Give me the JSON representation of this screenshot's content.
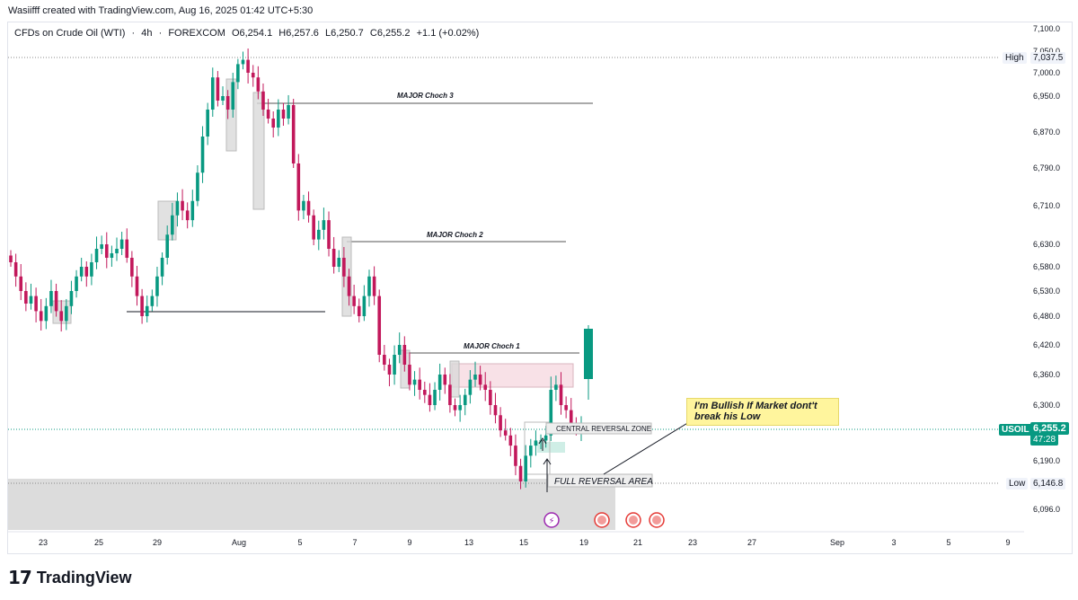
{
  "credit": "Wasiifff created with TradingView.com, Aug 16, 2025 01:42 UTC+5:30",
  "symbol": {
    "name": "CFDs on Crude Oil (WTI)",
    "sep1": "·",
    "interval": "4h",
    "sep2": "·",
    "exchange": "FOREXCOM",
    "open": "O6,254.1",
    "high": "H6,257.6",
    "low": "L6,250.7",
    "close": "C6,255.2",
    "change": "+1.1 (+0.02%)"
  },
  "price_tags": {
    "high_label": "High",
    "high_value": "7,037.5",
    "current_symbol": "USOIL",
    "current_value": "6,255.2",
    "countdown": "47:28",
    "low_label": "Low",
    "low_value": "6,146.8"
  },
  "annotations": {
    "choch3": "MAJOR Choch 3",
    "choch2": "MAJOR Choch 2",
    "choch1": "MAJOR Choch 1",
    "central_zone": "CENTRAL REVERSAL ZONE",
    "full_reversal": "FULL REVERSAL AREA",
    "note": "I'm Bullish If Market dont't break his Low"
  },
  "footer": {
    "logo_mark": "17",
    "brand": "TradingView"
  },
  "colors": {
    "up": "#089981",
    "down": "#c2185b",
    "accent": "#089981"
  },
  "chart_data": {
    "type": "candlestick",
    "title": "CFDs on Crude Oil (WTI) · 4h · FOREXCOM",
    "y_ticks": [
      "7,100.0",
      "7,050.0",
      "7,000.0",
      "6,950.0",
      "6,870.0",
      "6,790.0",
      "6,710.0",
      "6,630.0",
      "6,580.0",
      "6,530.0",
      "6,480.0",
      "6,420.0",
      "6,360.0",
      "6,300.0",
      "6,190.0",
      "6,096.0"
    ],
    "x_ticks": [
      "23",
      "25",
      "29",
      "Aug",
      "5",
      "7",
      "9",
      "13",
      "15",
      "19",
      "21",
      "23",
      "27",
      "Sep",
      "3",
      "5",
      "9"
    ],
    "high": 7037.5,
    "low": 6146.8,
    "last": 6255.2,
    "closes": [
      6590,
      6560,
      6530,
      6505,
      6520,
      6490,
      6470,
      6500,
      6530,
      6490,
      6470,
      6500,
      6530,
      6560,
      6580,
      6560,
      6590,
      6620,
      6630,
      6600,
      6610,
      6620,
      6640,
      6600,
      6560,
      6520,
      6480,
      6500,
      6520,
      6560,
      6600,
      6650,
      6690,
      6720,
      6700,
      6680,
      6720,
      6780,
      6860,
      6920,
      6990,
      6940,
      6950,
      6920,
      6980,
      7020,
      7030,
      7000,
      6990,
      6960,
      6920,
      6900,
      6880,
      6920,
      6900,
      6930,
      6800,
      6700,
      6720,
      6690,
      6640,
      6660,
      6680,
      6620,
      6580,
      6600,
      6560,
      6520,
      6500,
      6480,
      6520,
      6560,
      6520,
      6400,
      6380,
      6360,
      6400,
      6420,
      6380,
      6340,
      6350,
      6330,
      6320,
      6300,
      6330,
      6360,
      6340,
      6300,
      6290,
      6300,
      6320,
      6350,
      6360,
      6340,
      6330,
      6300,
      6280,
      6250,
      6240,
      6220,
      6180,
      6150,
      6200,
      6220,
      6230,
      6230,
      6240,
      6330,
      6340,
      6300,
      6290,
      6260,
      6250,
      6255
    ]
  }
}
